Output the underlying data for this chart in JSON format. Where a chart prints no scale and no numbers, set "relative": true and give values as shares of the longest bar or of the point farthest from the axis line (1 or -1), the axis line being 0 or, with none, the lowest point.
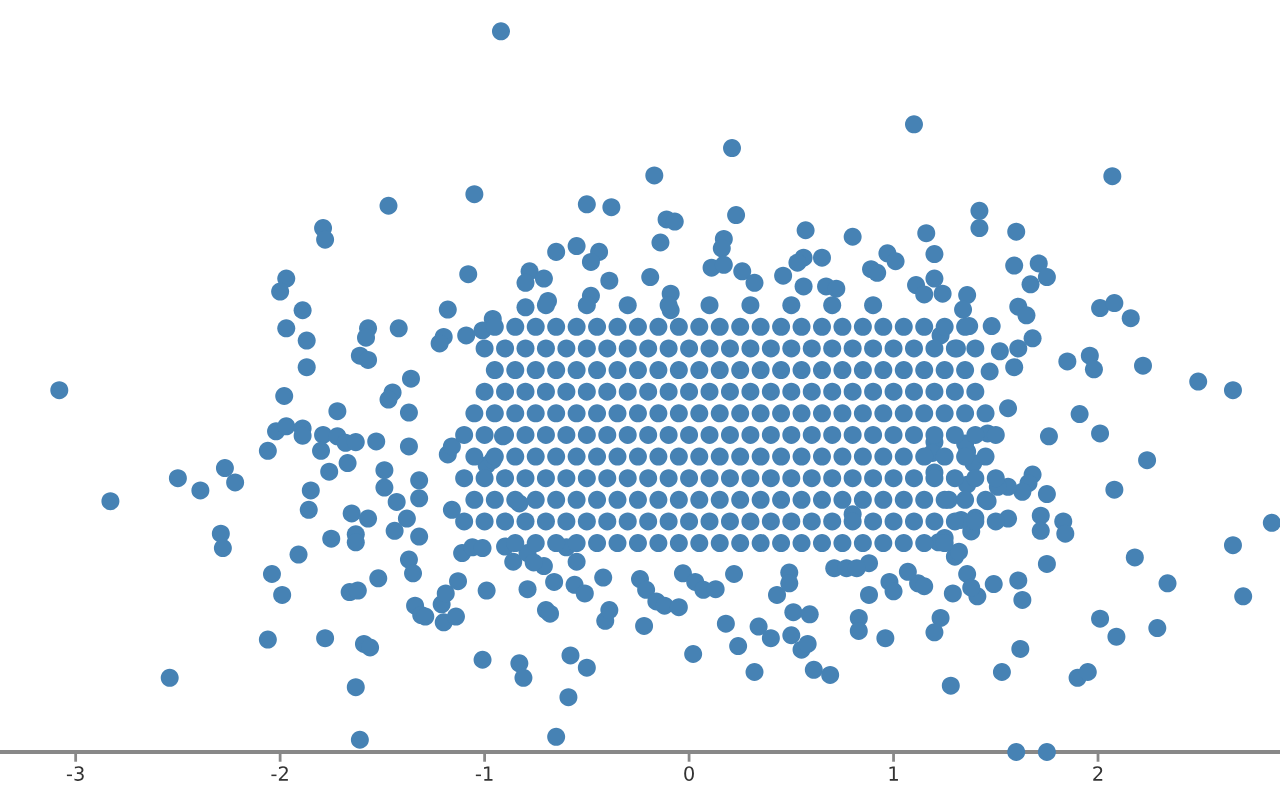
{
  "chart_data": {
    "type": "scatter",
    "relative": true,
    "color": "#4682b4",
    "marker": "circle",
    "xlim": [
      -3.37,
      2.89
    ],
    "xticks": [
      -3,
      -2,
      -1,
      0,
      1,
      2
    ],
    "x": [
      -1.47,
      -1.79,
      -1.78,
      -1.97,
      -2.0,
      -1.89,
      -1.97,
      -1.87,
      -1.57,
      -1.58,
      -1.42,
      -1.61,
      -1.57,
      -1.87,
      -1.36,
      -3.08,
      -1.98,
      -1.45,
      -0.92,
      0.21,
      -0.17,
      -1.05,
      -0.5,
      -0.38,
      -0.11,
      -0.07,
      0.23,
      -0.14,
      0.57,
      0.8,
      0.17,
      0.16,
      -0.65,
      -0.55,
      -0.44,
      -0.48,
      -1.08,
      -0.78,
      -0.71,
      -0.8,
      -0.39,
      -0.19,
      0.11,
      0.17,
      0.26,
      0.32,
      0.56,
      0.53,
      0.65,
      0.46,
      0.56,
      0.67,
      0.72,
      -1.18,
      -0.8,
      -0.69,
      -0.48,
      -0.09,
      -0.09,
      -0.96,
      -1.01,
      -1.09,
      -1.2,
      -1.22,
      1.1,
      2.07,
      1.42,
      1.42,
      1.16,
      1.6,
      1.2,
      0.97,
      1.01,
      0.89,
      0.92,
      1.59,
      1.71,
      1.75,
      1.67,
      1.11,
      1.15,
      1.24,
      1.2,
      1.36,
      1.61,
      1.65,
      1.34,
      2.01,
      2.08,
      2.16,
      1.37,
      1.48,
      1.23,
      1.68,
      1.31,
      1.52,
      1.61,
      1.85,
      1.96,
      1.98,
      2.22,
      1.59,
      1.47,
      2.49,
      2.66,
      -1.72,
      -1.47,
      -1.37,
      -2.02,
      -1.97,
      -1.89,
      -1.89,
      -2.06,
      -1.79,
      -1.8,
      -1.72,
      -1.68,
      -1.63,
      -1.53,
      -1.37,
      -1.76,
      -1.67,
      -2.5,
      -2.27,
      -2.22,
      -2.39,
      -2.83,
      -1.85,
      -1.86,
      -1.49,
      -1.49,
      -1.32,
      -1.43,
      -1.32,
      -1.65,
      -1.57,
      -1.38,
      -1.44,
      -2.29,
      -2.28,
      -1.75,
      -1.63,
      -1.63,
      -1.32,
      -1.91,
      -1.37,
      -2.04,
      -1.99,
      -1.66,
      -1.62,
      -1.52,
      -1.35,
      -1.34,
      -1.31,
      -2.06,
      -1.78,
      -1.59,
      -1.56,
      -2.54,
      -1.63,
      -1.61,
      -0.65,
      -0.59,
      -1.01,
      -0.83,
      -0.81,
      -0.58,
      -0.5,
      0.02,
      0.32,
      0.61,
      0.69,
      0.24,
      0.4,
      0.34,
      0.18,
      0.5,
      0.55,
      0.58,
      0.51,
      0.59,
      -0.22,
      -0.41,
      -0.39,
      -0.7,
      -0.68,
      -0.99,
      -0.79,
      -0.66,
      -0.56,
      -0.51,
      -0.42,
      -0.24,
      -0.21,
      -0.16,
      -0.12,
      -0.05,
      -0.03,
      0.03,
      0.07,
      0.13,
      0.22,
      0.43,
      0.49,
      0.49,
      0.71,
      0.77,
      0.8,
      -1.2,
      -1.14,
      -1.21,
      -1.19,
      -1.13,
      -1.29,
      -0.9,
      -0.86,
      -0.79,
      -0.71,
      -0.76,
      -0.55,
      -1.16,
      -1.11,
      -1.06,
      -1.01,
      -0.6,
      -0.83,
      -0.99,
      -0.96,
      -1.18,
      -1.16,
      -0.91,
      1.6,
      1.75,
      1.28,
      1.53,
      1.62,
      1.9,
      1.95,
      2.01,
      2.09,
      2.29,
      2.71,
      2.34,
      2.18,
      2.66,
      2.85,
      2.08,
      2.24,
      2.01,
      1.91,
      1.76,
      1.46,
      1.56,
      1.75,
      1.83,
      1.84,
      1.72,
      1.72,
      1.75,
      1.61,
      1.63,
      1.49,
      1.41,
      1.29,
      1.23,
      1.2,
      0.96,
      0.83,
      0.83,
      0.88,
      1.12,
      1.15,
      1.07,
      0.98,
      1.0,
      0.88,
      0.82,
      1.36,
      1.38,
      1.3,
      1.32,
      1.22,
      1.25,
      1.56,
      1.68,
      1.66,
      1.63,
      1.56,
      1.51,
      1.46,
      1.27,
      1.38,
      1.4,
      1.33,
      1.2,
      1.36,
      1.39,
      1.36,
      1.35,
      1.2,
      1.19,
      -0.85,
      -0.75,
      -0.65,
      -0.55,
      -0.45,
      -0.35,
      -0.25,
      -0.15,
      -0.05,
      0.05,
      0.15,
      0.25,
      0.35,
      0.45,
      0.55,
      0.65,
      0.75,
      0.85,
      0.95,
      1.05,
      1.15,
      1.25,
      -1.1,
      -1.0,
      -0.9,
      -0.8,
      -0.7,
      -0.6,
      -0.5,
      -0.4,
      -0.3,
      -0.2,
      -0.1,
      0.0,
      0.1,
      0.2,
      0.3,
      0.4,
      0.5,
      0.6,
      0.7,
      0.8,
      0.9,
      1.0,
      1.1,
      1.2,
      1.3,
      1.4,
      1.5,
      -1.05,
      -0.95,
      -0.85,
      -0.75,
      -0.65,
      -0.55,
      -0.45,
      -0.35,
      -0.25,
      -0.15,
      -0.05,
      0.05,
      0.15,
      0.25,
      0.35,
      0.45,
      0.55,
      0.65,
      0.75,
      0.85,
      0.95,
      1.05,
      1.15,
      1.25,
      1.35,
      1.45,
      -1.1,
      -1.0,
      -0.9,
      -0.8,
      -0.7,
      -0.6,
      -0.5,
      -0.4,
      -0.3,
      -0.2,
      -0.1,
      0.0,
      0.1,
      0.2,
      0.3,
      0.4,
      0.5,
      0.6,
      0.7,
      0.8,
      0.9,
      1.0,
      1.1,
      1.2,
      1.3,
      1.4,
      1.5,
      -1.05,
      -0.95,
      -0.85,
      -0.75,
      -0.65,
      -0.55,
      -0.45,
      -0.35,
      -0.25,
      -0.15,
      -0.05,
      0.05,
      0.15,
      0.25,
      0.35,
      0.45,
      0.55,
      0.65,
      0.75,
      0.85,
      0.95,
      1.05,
      1.15,
      1.25,
      1.35,
      1.45,
      -1.1,
      -1.0,
      -0.9,
      -0.8,
      -0.7,
      -0.6,
      -0.5,
      -0.4,
      -0.3,
      -0.2,
      -0.1,
      0.0,
      0.1,
      0.2,
      0.3,
      0.4,
      0.5,
      0.6,
      0.7,
      0.8,
      0.9,
      1.0,
      1.1,
      1.2,
      1.3,
      1.4,
      1.5,
      -1.05,
      -0.95,
      -0.85,
      -0.75,
      -0.65,
      -0.55,
      -0.45,
      -0.35,
      -0.25,
      -0.15,
      -0.05,
      0.05,
      0.15,
      0.25,
      0.35,
      0.45,
      0.55,
      0.65,
      0.75,
      0.85,
      0.95,
      1.05,
      1.15,
      1.25,
      1.35,
      1.45,
      -1.0,
      -0.9,
      -0.8,
      -0.7,
      -0.6,
      -0.5,
      -0.4,
      -0.3,
      -0.2,
      -0.1,
      0.0,
      0.1,
      0.2,
      0.3,
      0.4,
      0.5,
      0.6,
      0.7,
      0.8,
      0.9,
      1.0,
      1.1,
      1.2,
      1.3,
      1.4,
      -0.95,
      -0.85,
      -0.75,
      -0.65,
      -0.55,
      -0.45,
      -0.35,
      -0.25,
      -0.15,
      -0.05,
      0.05,
      0.15,
      0.25,
      0.35,
      0.45,
      0.55,
      0.65,
      0.75,
      0.85,
      0.95,
      1.05,
      1.15,
      1.25,
      1.35,
      -1.0,
      -0.9,
      -0.8,
      -0.7,
      -0.6,
      -0.5,
      -0.4,
      -0.3,
      -0.2,
      -0.1,
      0.0,
      0.1,
      0.2,
      0.3,
      0.4,
      0.5,
      0.6,
      0.7,
      0.8,
      0.9,
      1.0,
      1.1,
      1.2,
      1.3,
      1.4,
      -0.95,
      -0.85,
      -0.75,
      -0.65,
      -0.55,
      -0.45,
      -0.35,
      -0.25,
      -0.15,
      -0.05,
      0.05,
      0.15,
      0.25,
      0.35,
      0.45,
      0.55,
      0.65,
      0.75,
      0.85,
      0.95,
      1.05,
      1.15,
      1.25,
      1.35,
      -0.7,
      -0.5,
      -0.3,
      -0.1,
      0.1,
      0.3,
      0.5,
      0.7,
      0.9
    ],
    "values": [
      0.758,
      0.727,
      0.711,
      0.657,
      0.639,
      0.613,
      0.588,
      0.571,
      0.588,
      0.575,
      0.588,
      0.55,
      0.544,
      0.534,
      0.518,
      0.502,
      0.494,
      0.499,
      1.0,
      0.838,
      0.8,
      0.774,
      0.76,
      0.756,
      0.739,
      0.736,
      0.745,
      0.707,
      0.724,
      0.715,
      0.712,
      0.699,
      0.694,
      0.702,
      0.694,
      0.68,
      0.663,
      0.667,
      0.657,
      0.651,
      0.654,
      0.659,
      0.672,
      0.676,
      0.667,
      0.651,
      0.686,
      0.679,
      0.686,
      0.661,
      0.646,
      0.646,
      0.643,
      0.614,
      0.617,
      0.626,
      0.633,
      0.636,
      0.613,
      0.601,
      0.585,
      0.578,
      0.576,
      0.567,
      0.871,
      0.799,
      0.751,
      0.727,
      0.72,
      0.722,
      0.691,
      0.692,
      0.681,
      0.67,
      0.665,
      0.675,
      0.678,
      0.659,
      0.649,
      0.648,
      0.635,
      0.636,
      0.657,
      0.634,
      0.618,
      0.606,
      0.614,
      0.616,
      0.623,
      0.602,
      0.591,
      0.591,
      0.578,
      0.574,
      0.56,
      0.556,
      0.56,
      0.542,
      0.55,
      0.531,
      0.536,
      0.534,
      0.528,
      0.514,
      0.502,
      0.473,
      0.489,
      0.471,
      0.445,
      0.452,
      0.449,
      0.439,
      0.418,
      0.44,
      0.418,
      0.438,
      0.429,
      0.43,
      0.431,
      0.424,
      0.389,
      0.401,
      0.38,
      0.394,
      0.374,
      0.363,
      0.348,
      0.363,
      0.336,
      0.391,
      0.367,
      0.377,
      0.347,
      0.352,
      0.331,
      0.324,
      0.324,
      0.307,
      0.303,
      0.283,
      0.296,
      0.302,
      0.291,
      0.299,
      0.274,
      0.267,
      0.247,
      0.218,
      0.222,
      0.224,
      0.241,
      0.248,
      0.203,
      0.19,
      0.156,
      0.158,
      0.15,
      0.145,
      0.103,
      0.09,
      0.017,
      0.021,
      0.076,
      0.128,
      0.123,
      0.103,
      0.134,
      0.117,
      0.136,
      0.111,
      0.114,
      0.107,
      0.147,
      0.158,
      0.174,
      0.178,
      0.162,
      0.142,
      0.15,
      0.194,
      0.191,
      0.175,
      0.182,
      0.197,
      0.197,
      0.192,
      0.224,
      0.226,
      0.236,
      0.232,
      0.22,
      0.242,
      0.24,
      0.225,
      0.209,
      0.203,
      0.201,
      0.248,
      0.236,
      0.225,
      0.226,
      0.247,
      0.218,
      0.249,
      0.234,
      0.255,
      0.255,
      0.33,
      0.18,
      0.188,
      0.205,
      0.22,
      0.237,
      0.188,
      0.285,
      0.264,
      0.276,
      0.258,
      0.263,
      0.264,
      0.336,
      0.276,
      0.284,
      0.283,
      0.284,
      0.345,
      0.398,
      0.405,
      0.413,
      0.424,
      0.438,
      0,
      0,
      0.092,
      0.111,
      0.143,
      0.103,
      0.111,
      0.185,
      0.16,
      0.172,
      0.216,
      0.234,
      0.27,
      0.287,
      0.318,
      0.364,
      0.405,
      0.442,
      0.469,
      0.438,
      0.442,
      0.477,
      0.358,
      0.32,
      0.303,
      0.328,
      0.307,
      0.261,
      0.238,
      0.211,
      0.233,
      0.216,
      0.22,
      0.186,
      0.166,
      0.158,
      0.186,
      0.168,
      0.218,
      0.234,
      0.23,
      0.25,
      0.236,
      0.223,
      0.262,
      0.255,
      0.247,
      0.228,
      0.271,
      0.278,
      0.291,
      0.297,
      0.324,
      0.385,
      0.373,
      0.361,
      0.368,
      0.368,
      0.348,
      0.35,
      0.306,
      0.325,
      0.322,
      0.388,
      0.371,
      0.401,
      0.417,
      0.428,
      0.43,
      0.415,
      0.29,
      0.29,
      0.29,
      0.29,
      0.29,
      0.29,
      0.29,
      0.29,
      0.29,
      0.29,
      0.29,
      0.29,
      0.29,
      0.29,
      0.29,
      0.29,
      0.29,
      0.29,
      0.29,
      0.29,
      0.29,
      0.29,
      0.32,
      0.32,
      0.32,
      0.32,
      0.32,
      0.32,
      0.32,
      0.32,
      0.32,
      0.32,
      0.32,
      0.32,
      0.32,
      0.32,
      0.32,
      0.32,
      0.32,
      0.32,
      0.32,
      0.32,
      0.32,
      0.32,
      0.32,
      0.32,
      0.32,
      0.32,
      0.32,
      0.35,
      0.35,
      0.35,
      0.35,
      0.35,
      0.35,
      0.35,
      0.35,
      0.35,
      0.35,
      0.35,
      0.35,
      0.35,
      0.35,
      0.35,
      0.35,
      0.35,
      0.35,
      0.35,
      0.35,
      0.35,
      0.35,
      0.35,
      0.35,
      0.35,
      0.35,
      0.38,
      0.38,
      0.38,
      0.38,
      0.38,
      0.38,
      0.38,
      0.38,
      0.38,
      0.38,
      0.38,
      0.38,
      0.38,
      0.38,
      0.38,
      0.38,
      0.38,
      0.38,
      0.38,
      0.38,
      0.38,
      0.38,
      0.38,
      0.38,
      0.38,
      0.38,
      0.38,
      0.41,
      0.41,
      0.41,
      0.41,
      0.41,
      0.41,
      0.41,
      0.41,
      0.41,
      0.41,
      0.41,
      0.41,
      0.41,
      0.41,
      0.41,
      0.41,
      0.41,
      0.41,
      0.41,
      0.41,
      0.41,
      0.41,
      0.41,
      0.41,
      0.41,
      0.41,
      0.44,
      0.44,
      0.44,
      0.44,
      0.44,
      0.44,
      0.44,
      0.44,
      0.44,
      0.44,
      0.44,
      0.44,
      0.44,
      0.44,
      0.44,
      0.44,
      0.44,
      0.44,
      0.44,
      0.44,
      0.44,
      0.44,
      0.44,
      0.44,
      0.44,
      0.44,
      0.44,
      0.47,
      0.47,
      0.47,
      0.47,
      0.47,
      0.47,
      0.47,
      0.47,
      0.47,
      0.47,
      0.47,
      0.47,
      0.47,
      0.47,
      0.47,
      0.47,
      0.47,
      0.47,
      0.47,
      0.47,
      0.47,
      0.47,
      0.47,
      0.47,
      0.47,
      0.47,
      0.5,
      0.5,
      0.5,
      0.5,
      0.5,
      0.5,
      0.5,
      0.5,
      0.5,
      0.5,
      0.5,
      0.5,
      0.5,
      0.5,
      0.5,
      0.5,
      0.5,
      0.5,
      0.5,
      0.5,
      0.5,
      0.5,
      0.5,
      0.5,
      0.5,
      0.53,
      0.53,
      0.53,
      0.53,
      0.53,
      0.53,
      0.53,
      0.53,
      0.53,
      0.53,
      0.53,
      0.53,
      0.53,
      0.53,
      0.53,
      0.53,
      0.53,
      0.53,
      0.53,
      0.53,
      0.53,
      0.53,
      0.53,
      0.53,
      0.56,
      0.56,
      0.56,
      0.56,
      0.56,
      0.56,
      0.56,
      0.56,
      0.56,
      0.56,
      0.56,
      0.56,
      0.56,
      0.56,
      0.56,
      0.56,
      0.56,
      0.56,
      0.56,
      0.56,
      0.56,
      0.56,
      0.56,
      0.56,
      0.56,
      0.59,
      0.59,
      0.59,
      0.59,
      0.59,
      0.59,
      0.59,
      0.59,
      0.59,
      0.59,
      0.59,
      0.59,
      0.59,
      0.59,
      0.59,
      0.59,
      0.59,
      0.59,
      0.59,
      0.59,
      0.59,
      0.59,
      0.59,
      0.59,
      0.62,
      0.62,
      0.62,
      0.62,
      0.62,
      0.62,
      0.62,
      0.62,
      0.62
    ]
  }
}
